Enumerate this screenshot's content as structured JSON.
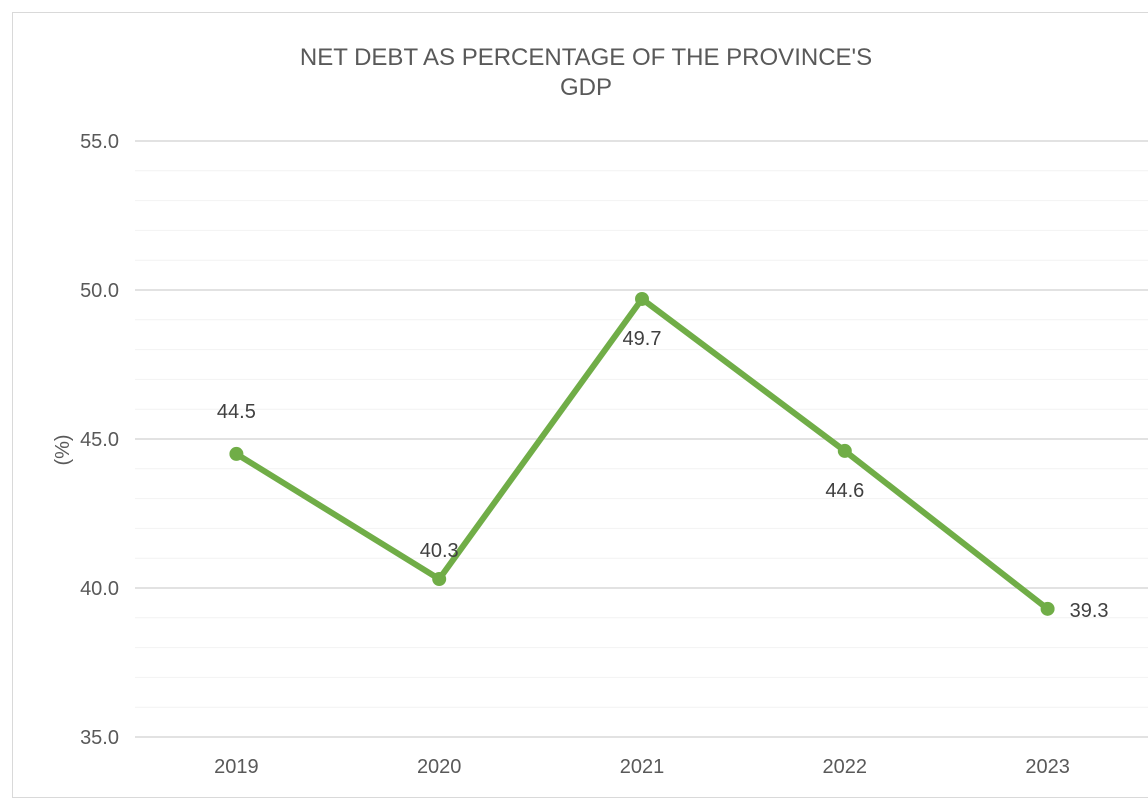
{
  "chart_data": {
    "type": "line",
    "title_lines": [
      "NET DEBT AS PERCENTAGE OF THE PROVINCE'S",
      "GDP"
    ],
    "xlabel": "",
    "ylabel": "(%)",
    "categories": [
      "2019",
      "2020",
      "2021",
      "2022",
      "2023"
    ],
    "series": [
      {
        "values": [
          44.5,
          40.3,
          49.7,
          44.6,
          39.3
        ],
        "color": "#70ad47"
      }
    ],
    "data_labels": [
      "44.5",
      "40.3",
      "49.7",
      "44.6",
      "39.3"
    ],
    "ylim": [
      35,
      55
    ],
    "y_ticks": [
      35,
      40,
      45,
      50,
      55
    ],
    "y_tick_labels": [
      "35.0",
      "40.0",
      "45.0",
      "50.0",
      "55.0"
    ],
    "grid": true,
    "minor_grid": true,
    "legend": "none"
  },
  "colors": {
    "line": "#70ad47",
    "grid_major": "#d9d9d9",
    "grid_minor": "#f2f2f2",
    "text": "#595959"
  }
}
